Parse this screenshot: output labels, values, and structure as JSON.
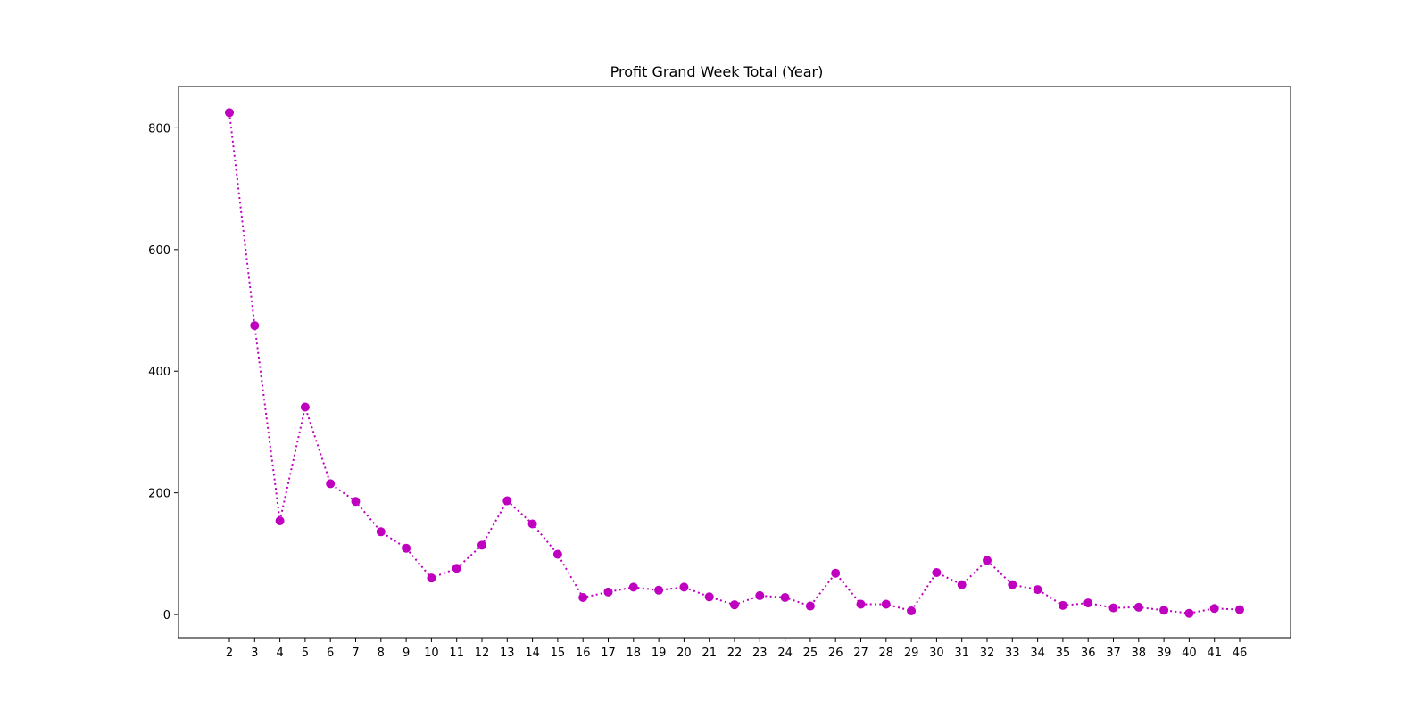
{
  "chart_data": {
    "type": "line",
    "title": "Profit Grand Week Total (Year)",
    "xlabel": "",
    "ylabel": "",
    "categories": [
      "2",
      "3",
      "4",
      "5",
      "6",
      "7",
      "8",
      "9",
      "10",
      "11",
      "12",
      "13",
      "14",
      "15",
      "16",
      "17",
      "18",
      "19",
      "20",
      "21",
      "22",
      "23",
      "24",
      "25",
      "26",
      "27",
      "28",
      "29",
      "30",
      "31",
      "32",
      "33",
      "34",
      "35",
      "36",
      "37",
      "38",
      "39",
      "40",
      "41",
      "46"
    ],
    "series": [
      {
        "values": [
          825,
          475,
          154,
          341,
          215,
          186,
          136,
          109,
          60,
          76,
          114,
          187,
          149,
          99,
          28,
          37,
          45,
          40,
          45,
          29,
          16,
          31,
          28,
          14,
          68,
          17,
          17,
          6,
          69,
          49,
          89,
          49,
          41,
          15,
          19,
          11,
          12,
          7,
          2,
          10,
          8
        ],
        "color": "#bf00bf",
        "line_style": "dotted",
        "marker": "circle"
      }
    ],
    "ylim": [
      -38,
      868
    ],
    "yticks": [
      0,
      200,
      400,
      600,
      800
    ],
    "grid": false
  }
}
